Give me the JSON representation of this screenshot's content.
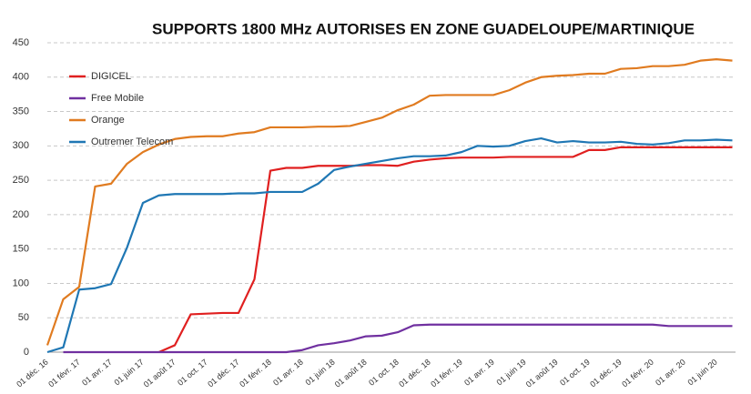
{
  "chart_data": {
    "type": "line",
    "title": "SUPPORTS 1800 MHz AUTORISES EN ZONE GUADELOUPE/MARTINIQUE",
    "categories": [
      "01 déc. 16",
      null,
      "01 févr. 17",
      null,
      "01 avr. 17",
      null,
      "01 juin 17",
      null,
      "01 août 17",
      null,
      "01 oct. 17",
      null,
      "01 déc. 17",
      null,
      "01 févr. 18",
      null,
      "01 avr. 18",
      null,
      "01 juin 18",
      null,
      "01 août 18",
      null,
      "01 oct. 18",
      null,
      "01 déc. 18",
      null,
      "01 févr. 19",
      null,
      "01 avr. 19",
      null,
      "01 juin 19",
      null,
      "01 août 19",
      null,
      "01 oct. 19",
      null,
      "01 déc. 19",
      null,
      "01 févr. 20",
      null,
      "01 avr. 20",
      null,
      "01 juin 20",
      null
    ],
    "series": [
      {
        "name": "DIGICEL",
        "color": "#e02020",
        "values": [
          null,
          null,
          null,
          null,
          null,
          null,
          null,
          0,
          10,
          55,
          56,
          57,
          57,
          106,
          264,
          268,
          268,
          271,
          271,
          271,
          272,
          272,
          271,
          277,
          280,
          282,
          283,
          283,
          283,
          284,
          284,
          284,
          284,
          284,
          294,
          294,
          298,
          298,
          298,
          298,
          298,
          298,
          298,
          298
        ]
      },
      {
        "name": "Free Mobile",
        "color": "#7030a0",
        "values": [
          null,
          0,
          0,
          0,
          0,
          0,
          0,
          0,
          0,
          0,
          0,
          0,
          0,
          0,
          0,
          0,
          3,
          10,
          13,
          17,
          23,
          24,
          29,
          39,
          40,
          40,
          40,
          40,
          40,
          40,
          40,
          40,
          40,
          40,
          40,
          40,
          40,
          40,
          40,
          38,
          38,
          38,
          38,
          38
        ]
      },
      {
        "name": "Orange",
        "color": "#e07b20",
        "values": [
          10,
          77,
          95,
          241,
          245,
          274,
          291,
          302,
          310,
          313,
          314,
          314,
          318,
          320,
          327,
          327,
          327,
          328,
          328,
          329,
          335,
          341,
          352,
          360,
          373,
          374,
          374,
          374,
          374,
          381,
          392,
          400,
          402,
          403,
          405,
          405,
          412,
          413,
          416,
          416,
          418,
          424,
          426,
          424
        ]
      },
      {
        "name": "Outremer Telecom",
        "color": "#1f77b4",
        "values": [
          0,
          7,
          91,
          93,
          99,
          152,
          217,
          228,
          230,
          230,
          230,
          230,
          231,
          231,
          233,
          233,
          233,
          245,
          265,
          270,
          274,
          278,
          282,
          285,
          285,
          286,
          291,
          300,
          299,
          300,
          307,
          311,
          305,
          307,
          305,
          305,
          306,
          303,
          302,
          304,
          308,
          308,
          309,
          308
        ]
      }
    ],
    "ylim": [
      0,
      450
    ],
    "yticks": [
      0,
      50,
      100,
      150,
      200,
      250,
      300,
      350,
      400,
      450
    ],
    "grid": true,
    "legend": "upper left"
  }
}
